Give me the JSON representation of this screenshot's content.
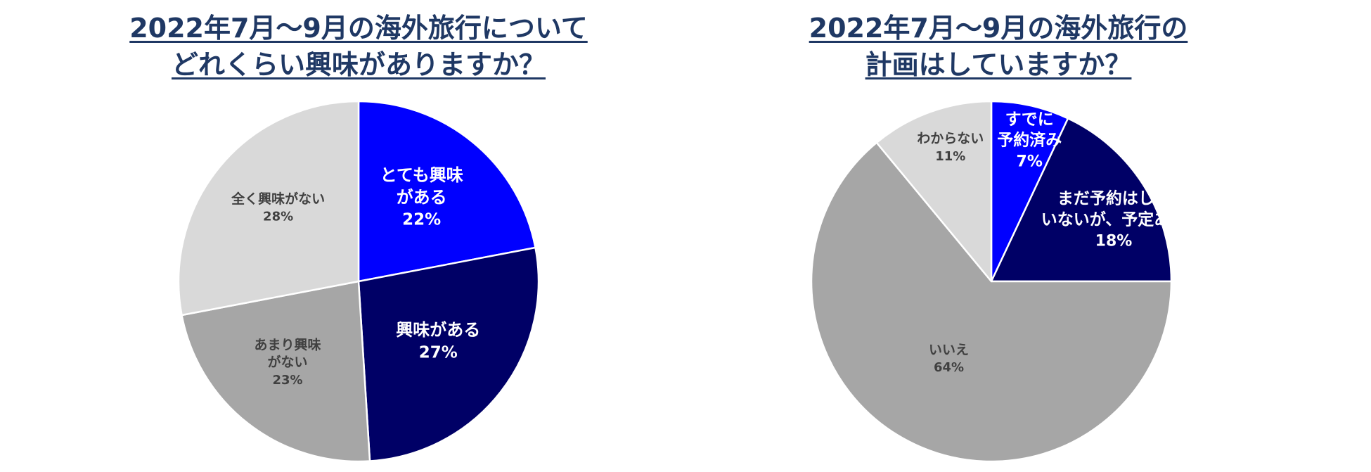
{
  "chart_data": [
    {
      "type": "pie",
      "title_lines": [
        "2022年7月～9月の海外旅行について",
        "どれくらい興味がありますか？"
      ],
      "slices": [
        {
          "label_lines": [
            "とても興味",
            "がある"
          ],
          "value": 22,
          "value_label": "22%",
          "color": "#0000ff",
          "text_color": "#ffffff"
        },
        {
          "label_lines": [
            "興味がある"
          ],
          "value": 27,
          "value_label": "27%",
          "color": "#000066",
          "text_color": "#ffffff"
        },
        {
          "label_lines": [
            "あまり興味",
            "がない"
          ],
          "value": 23,
          "value_label": "23%",
          "color": "#a6a6a6",
          "text_color": "#404040"
        },
        {
          "label_lines": [
            "全く興味がない"
          ],
          "value": 28,
          "value_label": "28%",
          "color": "#d9d9d9",
          "text_color": "#404040"
        }
      ]
    },
    {
      "type": "pie",
      "title_lines": [
        "2022年7月～9月の海外旅行の",
        "計画はしていますか？"
      ],
      "slices": [
        {
          "label_lines": [
            "すでに",
            "予約済み"
          ],
          "value": 7,
          "value_label": "7%",
          "color": "#0000ff",
          "text_color": "#ffffff"
        },
        {
          "label_lines": [
            "まだ予約はして",
            "いないが、予定あり"
          ],
          "value": 18,
          "value_label": "18%",
          "color": "#000066",
          "text_color": "#ffffff"
        },
        {
          "label_lines": [
            "いいえ"
          ],
          "value": 64,
          "value_label": "64%",
          "color": "#a6a6a6",
          "text_color": "#404040"
        },
        {
          "label_lines": [
            "わからない"
          ],
          "value": 11,
          "value_label": "11%",
          "color": "#d9d9d9",
          "text_color": "#404040"
        }
      ]
    }
  ]
}
